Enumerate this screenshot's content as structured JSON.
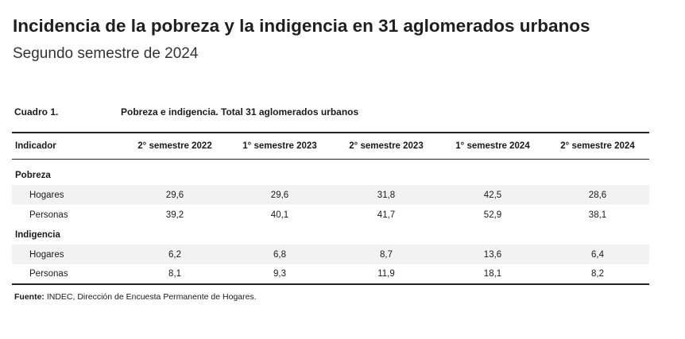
{
  "title": "Incidencia de la pobreza y la indigencia en 31 aglomerados urbanos",
  "subtitle": "Segundo semestre de 2024",
  "cuadro": {
    "number": "Cuadro 1.",
    "title": "Pobreza e indigencia. Total 31 aglomerados urbanos"
  },
  "table": {
    "headers": [
      "Indicador",
      "2° semestre 2022",
      "1° semestre 2023",
      "2° semestre 2023",
      "1° semestre 2024",
      "2° semestre 2024"
    ],
    "sections": [
      {
        "name": "Pobreza",
        "rows": [
          {
            "label": "Hogares",
            "values": [
              "29,6",
              "29,6",
              "31,8",
              "42,5",
              "28,6"
            ]
          },
          {
            "label": "Personas",
            "values": [
              "39,2",
              "40,1",
              "41,7",
              "52,9",
              "38,1"
            ]
          }
        ]
      },
      {
        "name": "Indigencia",
        "rows": [
          {
            "label": "Hogares",
            "values": [
              "6,2",
              "6,8",
              "8,7",
              "13,6",
              "6,4"
            ]
          },
          {
            "label": "Personas",
            "values": [
              "8,1",
              "9,3",
              "11,9",
              "18,1",
              "8,2"
            ]
          }
        ]
      }
    ]
  },
  "source": {
    "label": "Fuente:",
    "text": " INDEC, Dirección de Encuesta Permanente de Hogares."
  }
}
